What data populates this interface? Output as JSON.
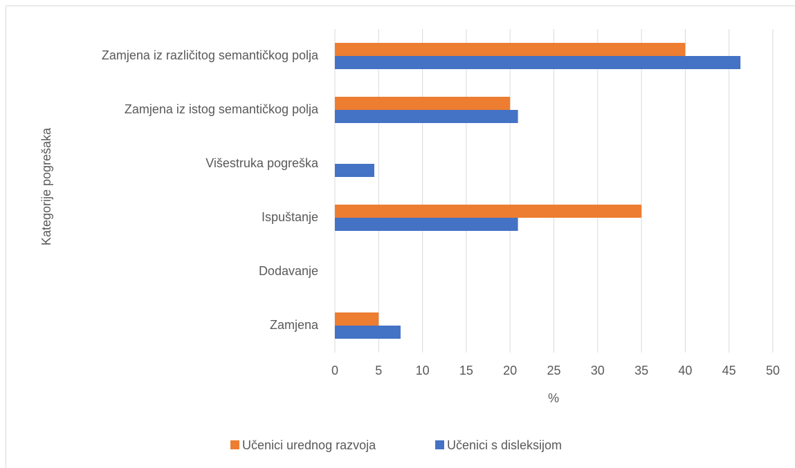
{
  "chart_data": {
    "type": "barh",
    "y_label": "Kategorije pogrešaka",
    "x_label": "%",
    "categories": [
      "Zamjena iz različitog semantičkog polja",
      "Zamjena iz istog semantičkog polja",
      "Višestruka pogreška",
      "Ispuštanje",
      "Dodavanje",
      "Zamjena"
    ],
    "series": [
      {
        "name": "Učenici urednog razvoja",
        "color": "#ed7d31",
        "values": [
          40,
          20,
          0,
          35,
          0,
          5
        ]
      },
      {
        "name": "Učenici s disleksijom",
        "color": "#4472c4",
        "values": [
          46.3,
          20.9,
          4.5,
          20.9,
          0,
          7.5
        ]
      }
    ],
    "xlim": [
      0,
      50
    ],
    "xticks": [
      0,
      5,
      10,
      15,
      20,
      25,
      30,
      35,
      40,
      45,
      50
    ],
    "grid": true,
    "legend": "bottom"
  }
}
